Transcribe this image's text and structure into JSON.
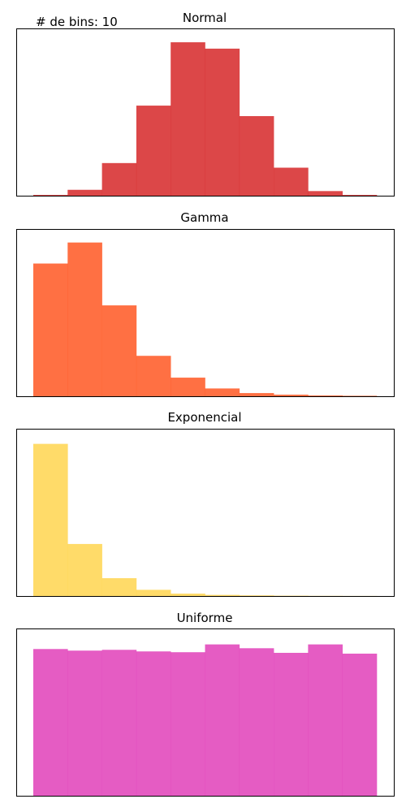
{
  "annotation": "# de bins: 10",
  "chart_data": [
    {
      "type": "bar",
      "title": "Normal",
      "color": "#d62728",
      "bins": 10,
      "values": [
        0.5,
        3.7,
        20.5,
        56.6,
        96.4,
        92.4,
        50.0,
        17.6,
        2.9,
        0.5
      ],
      "ylim": [
        0,
        100
      ],
      "grid": false,
      "xticks": false,
      "yticks": false
    },
    {
      "type": "bar",
      "title": "Gamma",
      "color": "#ff5722",
      "bins": 10,
      "values": [
        83.4,
        96.6,
        57.1,
        25.4,
        11.7,
        4.9,
        2.0,
        1.0,
        0.5,
        0.3
      ],
      "ylim": [
        0,
        100
      ],
      "grid": false,
      "xticks": false,
      "yticks": false
    },
    {
      "type": "bar",
      "title": "Exponencial",
      "color": "#ffd54f",
      "bins": 10,
      "values": [
        95.6,
        32.7,
        11.2,
        3.9,
        1.5,
        0.7,
        0.4,
        0.2,
        0.1,
        0.05
      ],
      "ylim": [
        0,
        100
      ],
      "grid": false,
      "xticks": false,
      "yticks": false
    },
    {
      "type": "bar",
      "title": "Uniforme",
      "color": "#e040b8",
      "bins": 10,
      "values": [
        92.2,
        91.2,
        91.7,
        90.7,
        90.2,
        95.1,
        92.7,
        89.8,
        95.1,
        89.3
      ],
      "ylim": [
        0,
        100
      ],
      "grid": false,
      "xticks": false,
      "yticks": false
    }
  ]
}
